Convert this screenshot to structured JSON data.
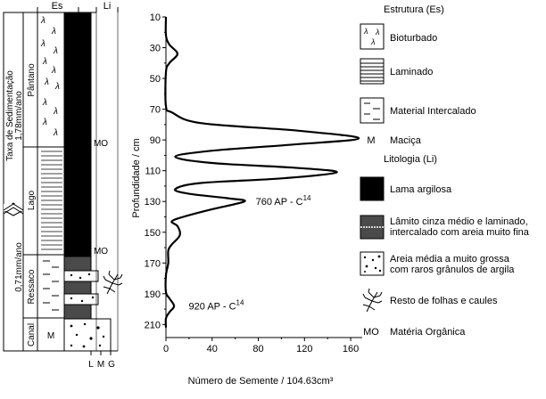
{
  "column": {
    "header_es": "Es",
    "header_li": "Li",
    "sedimentation_title": "Taxa de Sedimentação",
    "rate_upper": "1,78mm/ano",
    "rate_lower": "0,71mm/ano",
    "env_pantano": "Pântano",
    "env_lago": "Lago",
    "env_ressaco": "Ressaco",
    "env_canal": "Canal",
    "mo_upper": "MO",
    "mo_lower": "MO",
    "m_label": "M",
    "grain_l": "L",
    "grain_m": "M",
    "grain_g": "G"
  },
  "chart_data": {
    "type": "line",
    "ylabel": "Profundidade / cm",
    "xlabel": "Número de Semente / 104.63cm³",
    "y_axis": {
      "min": 10,
      "max": 215,
      "reversed": true,
      "ticks": [
        10,
        30,
        50,
        70,
        90,
        110,
        130,
        150,
        170,
        190,
        210
      ]
    },
    "x_axis": {
      "min": 0,
      "max": 170,
      "ticks": [
        0,
        40,
        80,
        120,
        160
      ]
    },
    "series": [
      {
        "points": [
          [
            0,
            10
          ],
          [
            0,
            22
          ],
          [
            3,
            28
          ],
          [
            10,
            34
          ],
          [
            3,
            40
          ],
          [
            0,
            46
          ],
          [
            0,
            68
          ],
          [
            5,
            72
          ],
          [
            30,
            79
          ],
          [
            115,
            84
          ],
          [
            167,
            89
          ],
          [
            110,
            93
          ],
          [
            40,
            97
          ],
          [
            8,
            101
          ],
          [
            40,
            105
          ],
          [
            110,
            108
          ],
          [
            148,
            111
          ],
          [
            100,
            115
          ],
          [
            30,
            118
          ],
          [
            8,
            122
          ],
          [
            20,
            125
          ],
          [
            55,
            128
          ],
          [
            68,
            130
          ],
          [
            40,
            135
          ],
          [
            15,
            140
          ],
          [
            5,
            143
          ],
          [
            10,
            146
          ],
          [
            12,
            152
          ],
          [
            5,
            158
          ],
          [
            2,
            162
          ],
          [
            2,
            170
          ],
          [
            0,
            178
          ],
          [
            0,
            189
          ],
          [
            3,
            193
          ],
          [
            7,
            198
          ],
          [
            3,
            202
          ],
          [
            0,
            206
          ],
          [
            0,
            212
          ]
        ]
      }
    ],
    "annotations": [
      {
        "text": "760 AP - C",
        "sup": "14",
        "x": 70,
        "y": 130
      },
      {
        "text": "920 AP - C",
        "sup": "14",
        "x": 12,
        "y": 198
      }
    ]
  },
  "legend": {
    "estrutura_title": "Estrutura (Es)",
    "bioturbado": "Bioturbado",
    "laminado": "Laminado",
    "intercalado": "Material Intercalado",
    "macica_symbol": "M",
    "macica": "Maciça",
    "litologia_title": "Litologia (Li)",
    "lama": "Lama argilosa",
    "lamito_line1": "Lâmito cinza médio e laminado,",
    "lamito_line2": "intercalado com areia muito fina",
    "areia_line1": "Areia média a muito grossa",
    "areia_line2": "com raros grânulos de argila",
    "folhas": "Resto de folhas e caules",
    "mo_symbol": "MO",
    "mo": "Matéria Orgânica",
    "colors": {
      "mud": "#000000",
      "lamito": "#4a4a4a",
      "line": "#000000"
    }
  }
}
